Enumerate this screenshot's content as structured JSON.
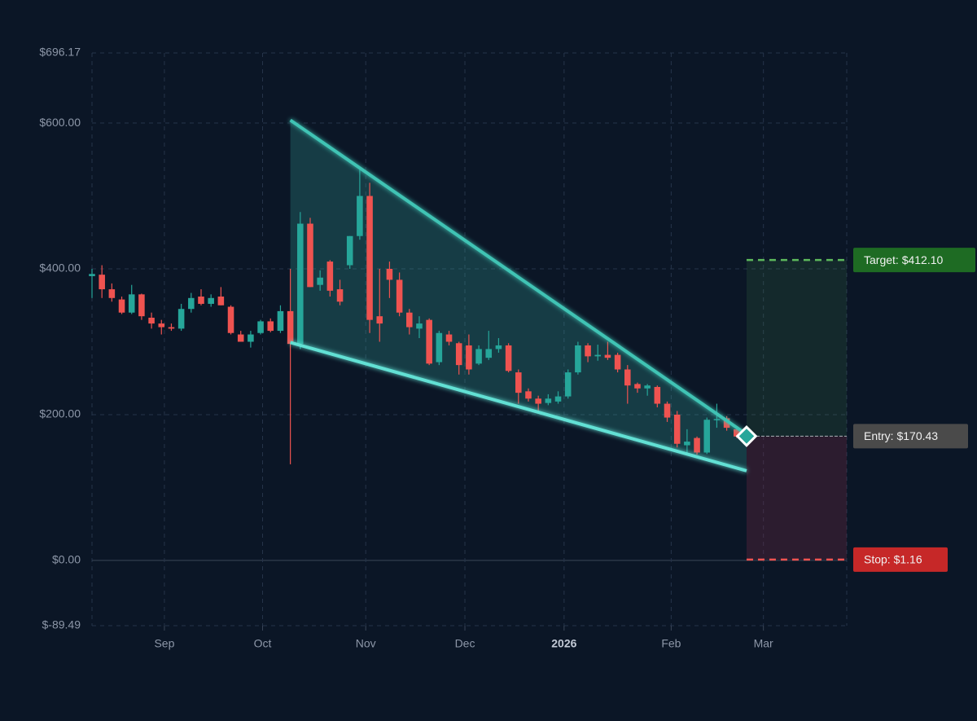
{
  "chart_data": {
    "type": "candlestick",
    "up_color": "#26a69a",
    "down_color": "#ef5350",
    "ylim": [
      -89.49,
      696.17
    ],
    "yticks": [
      {
        "value": 696.17,
        "label": "$696.17"
      },
      {
        "value": 600,
        "label": "$600.00"
      },
      {
        "value": 400,
        "label": "$400.00"
      },
      {
        "value": 200,
        "label": "$200.00"
      },
      {
        "value": 0,
        "label": "$0.00"
      },
      {
        "value": -89.49,
        "label": "$-89.49"
      }
    ],
    "xlim": [
      0,
      76.1
    ],
    "xticks": [
      {
        "value": 7.3,
        "label": "Sep"
      },
      {
        "value": 17.2,
        "label": "Oct"
      },
      {
        "value": 27.6,
        "label": "Nov"
      },
      {
        "value": 37.6,
        "label": "Dec"
      },
      {
        "value": 47.6,
        "label": "2026",
        "bold": true
      },
      {
        "value": 58.4,
        "label": "Feb"
      },
      {
        "value": 67.7,
        "label": "Mar"
      }
    ],
    "grid": true,
    "open": [
      390,
      392,
      372,
      358,
      340,
      365,
      333,
      325,
      320,
      318,
      345,
      362,
      352,
      362,
      348,
      310,
      300,
      312,
      328,
      315,
      342,
      297,
      462,
      378,
      410,
      372,
      405,
      445,
      500,
      335,
      400,
      385,
      340,
      318,
      330,
      272,
      310,
      298,
      295,
      270,
      278,
      290,
      295,
      258,
      232,
      222,
      216,
      218,
      225,
      258,
      295,
      280,
      282,
      282,
      262,
      242,
      236,
      238,
      215,
      200,
      158,
      168,
      148,
      193,
      195,
      180
    ],
    "high": [
      400,
      405,
      380,
      362,
      378,
      366,
      340,
      330,
      325,
      352,
      367,
      372,
      365,
      375,
      350,
      315,
      315,
      330,
      332,
      350,
      400,
      478,
      470,
      398,
      412,
      385,
      445,
      540,
      518,
      400,
      410,
      395,
      345,
      335,
      332,
      315,
      315,
      300,
      310,
      295,
      315,
      305,
      298,
      262,
      236,
      226,
      228,
      232,
      262,
      300,
      298,
      296,
      300,
      285,
      268,
      244,
      242,
      240,
      218,
      205,
      180,
      170,
      196,
      215,
      198,
      183
    ],
    "low": [
      360,
      360,
      355,
      338,
      338,
      330,
      318,
      310,
      315,
      315,
      340,
      350,
      348,
      350,
      310,
      300,
      292,
      310,
      313,
      312,
      132,
      290,
      375,
      370,
      362,
      350,
      400,
      440,
      312,
      300,
      360,
      335,
      310,
      305,
      268,
      268,
      295,
      255,
      255,
      268,
      275,
      285,
      258,
      215,
      218,
      205,
      213,
      215,
      222,
      255,
      272,
      274,
      275,
      258,
      215,
      230,
      226,
      210,
      190,
      155,
      148,
      145,
      146,
      182,
      178,
      168
    ],
    "close": [
      393,
      372,
      360,
      340,
      365,
      335,
      325,
      320,
      318,
      345,
      360,
      352,
      360,
      350,
      312,
      300,
      310,
      328,
      315,
      342,
      297,
      462,
      375,
      388,
      370,
      355,
      445,
      500,
      330,
      325,
      385,
      340,
      320,
      325,
      270,
      312,
      300,
      268,
      262,
      290,
      290,
      295,
      260,
      230,
      222,
      215,
      222,
      225,
      258,
      295,
      280,
      282,
      278,
      262,
      240,
      236,
      240,
      215,
      196,
      160,
      163,
      148,
      193,
      194,
      182,
      170
    ],
    "wedge": {
      "x": [
        20,
        66
      ],
      "upper": [
        604,
        173
      ],
      "lower": [
        299,
        123
      ],
      "color": "#3fc3b4"
    },
    "trade": {
      "x": 66,
      "target": {
        "value": 412.1,
        "label": "Target: $412.10",
        "color": "#5cb85c",
        "box": "#1e6b23"
      },
      "entry": {
        "value": 170.43,
        "label": "Entry: $170.43",
        "color": "#9aa0a6",
        "box": "#4a4a4a"
      },
      "stop": {
        "value": 1.16,
        "label": "Stop: $1.16",
        "color": "#ef5350",
        "box": "#c62828"
      }
    }
  }
}
